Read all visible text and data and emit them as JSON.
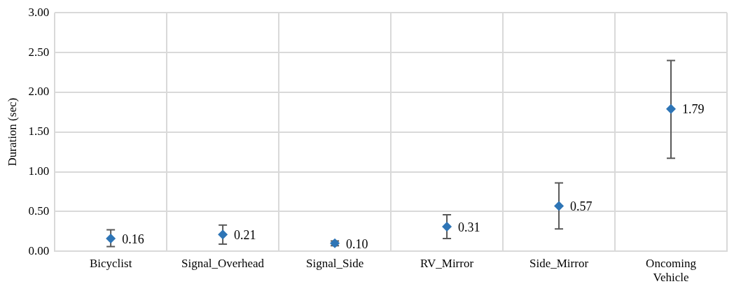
{
  "chart_data": {
    "type": "scatter",
    "ylabel": "Duration (sec)",
    "categories": [
      "Bicyclist",
      "Signal_Overhead",
      "Signal_Side",
      "RV_Mirror",
      "Side_Mirror",
      "Oncoming Vehicle"
    ],
    "values": [
      0.16,
      0.21,
      0.1,
      0.31,
      0.57,
      1.79
    ],
    "errors": [
      [
        0.06,
        0.27
      ],
      [
        0.09,
        0.33
      ],
      [
        0.07,
        0.13
      ],
      [
        0.16,
        0.46
      ],
      [
        0.28,
        0.86
      ],
      [
        1.17,
        2.4
      ]
    ],
    "value_labels": [
      "0.16",
      "0.21",
      "0.10",
      "0.31",
      "0.57",
      "1.79"
    ],
    "color": "#2e75b6",
    "marker": "diamond",
    "grid": true,
    "ylim": [
      0,
      3
    ],
    "yticks": [
      {
        "value": 0,
        "label": "0.00"
      },
      {
        "value": 0.5,
        "label": "0.50"
      },
      {
        "value": 1,
        "label": "1.00"
      },
      {
        "value": 1.5,
        "label": "1.50"
      },
      {
        "value": 2,
        "label": "2.00"
      },
      {
        "value": 2.5,
        "label": "2.50"
      },
      {
        "value": 3,
        "label": "3.00"
      }
    ]
  }
}
